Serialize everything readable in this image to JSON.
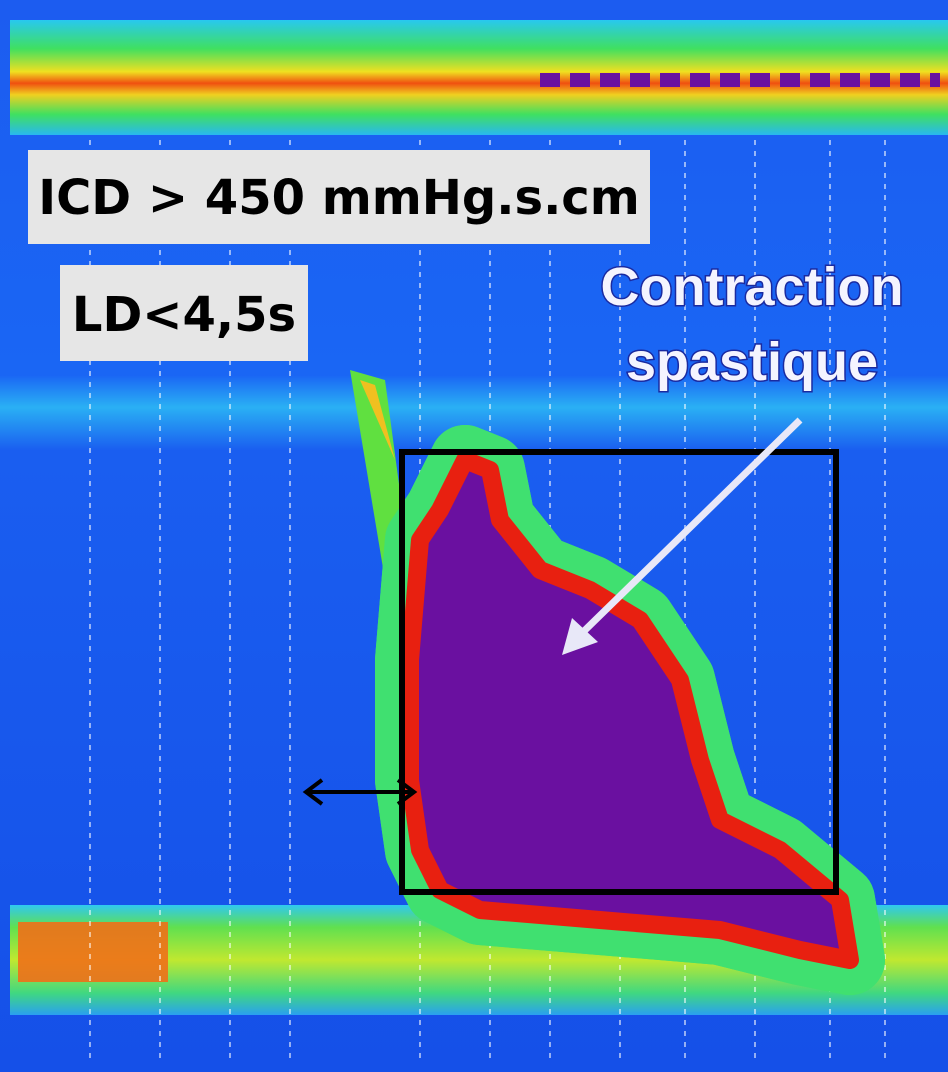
{
  "labels": {
    "icd": "ICD > 450 mmHg.s.cm",
    "ld": "LD<4,5s",
    "annotation": [
      "Contraction",
      "spastique"
    ]
  }
}
